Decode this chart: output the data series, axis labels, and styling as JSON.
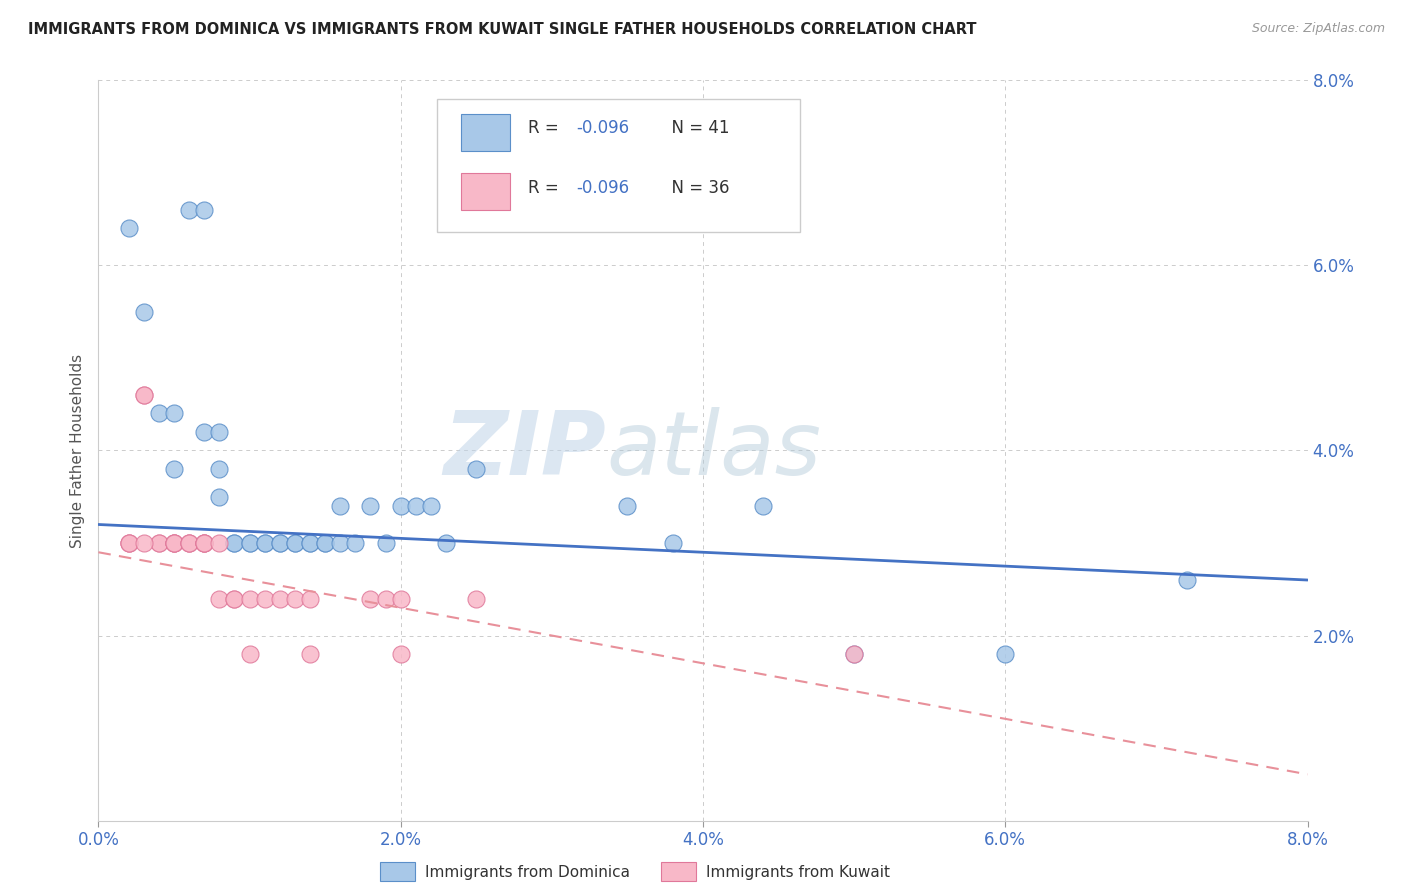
{
  "title": "IMMIGRANTS FROM DOMINICA VS IMMIGRANTS FROM KUWAIT SINGLE FATHER HOUSEHOLDS CORRELATION CHART",
  "source": "Source: ZipAtlas.com",
  "ylabel": "Single Father Households",
  "xmin": 0.0,
  "xmax": 0.08,
  "ymin": 0.0,
  "ymax": 0.08,
  "yticks": [
    0.0,
    0.02,
    0.04,
    0.06,
    0.08
  ],
  "ytick_labels": [
    "",
    "2.0%",
    "4.0%",
    "6.0%",
    "8.0%"
  ],
  "xticks": [
    0.0,
    0.02,
    0.04,
    0.06,
    0.08
  ],
  "xtick_labels": [
    "0.0%",
    "2.0%",
    "4.0%",
    "6.0%",
    "8.0%"
  ],
  "legend_label_1": "Immigrants from Dominica",
  "legend_label_2": "Immigrants from Kuwait",
  "dominica_color": "#a8c8e8",
  "kuwait_color": "#f8b8c8",
  "dominica_edge_color": "#5b8fc9",
  "kuwait_edge_color": "#e0789a",
  "dominica_line_color": "#4472c4",
  "kuwait_line_color": "#e8909a",
  "watermark_zip": "ZIP",
  "watermark_atlas": "atlas",
  "dominica_points": [
    [
      0.002,
      0.064
    ],
    [
      0.003,
      0.055
    ],
    [
      0.004,
      0.044
    ],
    [
      0.005,
      0.044
    ],
    [
      0.006,
      0.066
    ],
    [
      0.007,
      0.066
    ],
    [
      0.005,
      0.038
    ],
    [
      0.007,
      0.042
    ],
    [
      0.008,
      0.042
    ],
    [
      0.008,
      0.038
    ],
    [
      0.008,
      0.035
    ],
    [
      0.009,
      0.03
    ],
    [
      0.009,
      0.03
    ],
    [
      0.01,
      0.03
    ],
    [
      0.01,
      0.03
    ],
    [
      0.011,
      0.03
    ],
    [
      0.011,
      0.03
    ],
    [
      0.012,
      0.03
    ],
    [
      0.012,
      0.03
    ],
    [
      0.013,
      0.03
    ],
    [
      0.013,
      0.03
    ],
    [
      0.014,
      0.03
    ],
    [
      0.014,
      0.03
    ],
    [
      0.015,
      0.03
    ],
    [
      0.015,
      0.03
    ],
    [
      0.016,
      0.034
    ],
    [
      0.016,
      0.03
    ],
    [
      0.017,
      0.03
    ],
    [
      0.018,
      0.034
    ],
    [
      0.019,
      0.03
    ],
    [
      0.02,
      0.034
    ],
    [
      0.021,
      0.034
    ],
    [
      0.022,
      0.034
    ],
    [
      0.023,
      0.03
    ],
    [
      0.025,
      0.038
    ],
    [
      0.035,
      0.034
    ],
    [
      0.038,
      0.03
    ],
    [
      0.044,
      0.034
    ],
    [
      0.05,
      0.018
    ],
    [
      0.06,
      0.018
    ],
    [
      0.072,
      0.026
    ]
  ],
  "kuwait_points": [
    [
      0.002,
      0.03
    ],
    [
      0.002,
      0.03
    ],
    [
      0.003,
      0.046
    ],
    [
      0.003,
      0.046
    ],
    [
      0.004,
      0.03
    ],
    [
      0.004,
      0.03
    ],
    [
      0.005,
      0.03
    ],
    [
      0.005,
      0.03
    ],
    [
      0.005,
      0.03
    ],
    [
      0.005,
      0.03
    ],
    [
      0.006,
      0.03
    ],
    [
      0.006,
      0.03
    ],
    [
      0.006,
      0.03
    ],
    [
      0.007,
      0.03
    ],
    [
      0.007,
      0.03
    ],
    [
      0.007,
      0.03
    ],
    [
      0.007,
      0.03
    ],
    [
      0.008,
      0.03
    ],
    [
      0.008,
      0.024
    ],
    [
      0.009,
      0.024
    ],
    [
      0.009,
      0.024
    ],
    [
      0.01,
      0.024
    ],
    [
      0.011,
      0.024
    ],
    [
      0.012,
      0.024
    ],
    [
      0.013,
      0.024
    ],
    [
      0.014,
      0.024
    ],
    [
      0.018,
      0.024
    ],
    [
      0.019,
      0.024
    ],
    [
      0.02,
      0.024
    ],
    [
      0.025,
      0.024
    ],
    [
      0.002,
      0.03
    ],
    [
      0.003,
      0.03
    ],
    [
      0.01,
      0.018
    ],
    [
      0.014,
      0.018
    ],
    [
      0.02,
      0.018
    ],
    [
      0.05,
      0.018
    ]
  ],
  "dominica_trend_x": [
    0.0,
    0.08
  ],
  "dominica_trend_y": [
    0.032,
    0.026
  ],
  "kuwait_trend_x": [
    0.0,
    0.08
  ],
  "kuwait_trend_y": [
    0.029,
    0.005
  ]
}
